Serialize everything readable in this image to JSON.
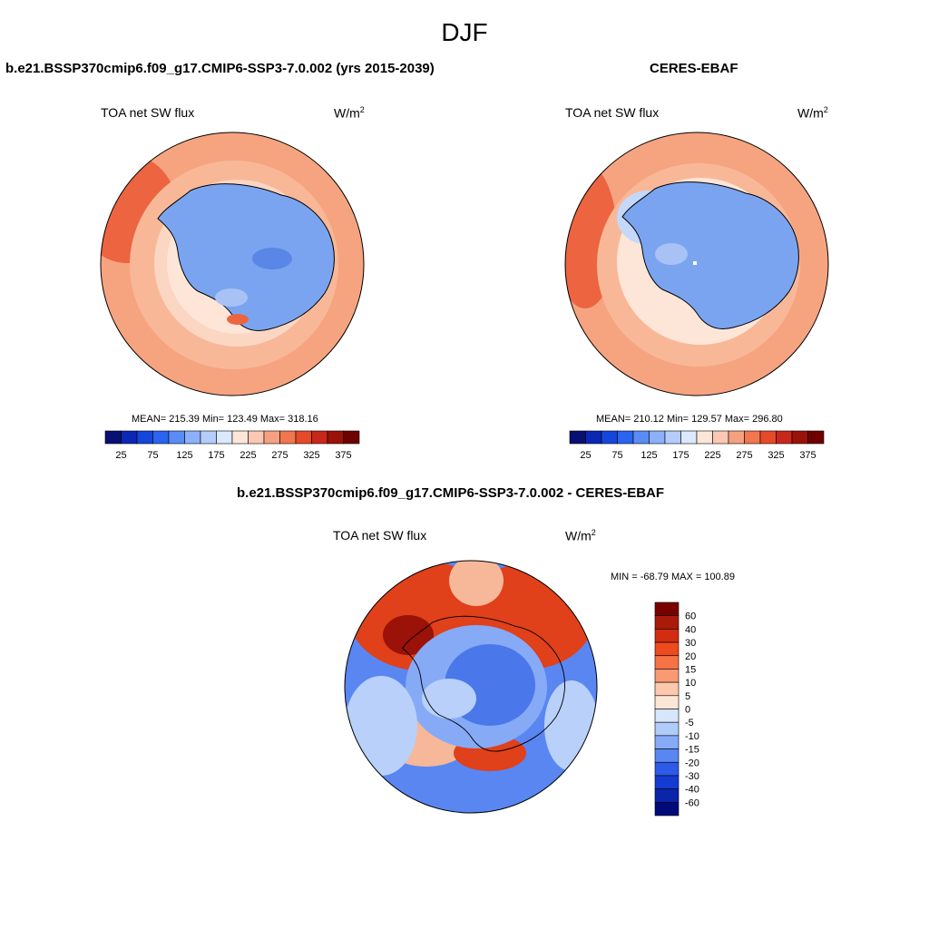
{
  "figure": {
    "title": "DJF",
    "panels": [
      {
        "id": "model",
        "title": "b.e21.BSSP370cmip6.f09_g17.CMIP6-SSP3-7.0.002 (yrs 2015-2039)",
        "variable": "TOA net SW flux",
        "units": "W/m",
        "units_sup": "2",
        "stats": "MEAN= 215.39  Min= 123.49  Max= 318.16"
      },
      {
        "id": "obs",
        "title": "CERES-EBAF",
        "variable": "TOA net SW flux",
        "units": "W/m",
        "units_sup": "2",
        "stats": "MEAN= 210.12  Min= 129.57  Max= 296.80"
      },
      {
        "id": "diff",
        "title": "b.e21.BSSP370cmip6.f09_g17.CMIP6-SSP3-7.0.002 - CERES-EBAF",
        "variable": "TOA net SW flux",
        "units": "W/m",
        "units_sup": "2",
        "stats": "MIN = -68.79 MAX = 100.89"
      }
    ]
  },
  "colorbar_fields": {
    "colors": [
      "#0a0f73",
      "#0a28b4",
      "#1446dc",
      "#2a64f0",
      "#5a8cf5",
      "#8cb0fa",
      "#b4cdfa",
      "#dce8fb",
      "#fde6d7",
      "#fbc8b4",
      "#f5a080",
      "#f27650",
      "#e64a28",
      "#c8281a",
      "#9b1208",
      "#6e0000"
    ],
    "tick_labels": [
      "25",
      "75",
      "125",
      "175",
      "225",
      "275",
      "325",
      "375"
    ]
  },
  "colorbar_diff": {
    "colors": [
      "#7a0000",
      "#aa1a08",
      "#d22d10",
      "#ee4a1e",
      "#f57345",
      "#f99a72",
      "#fcc8ae",
      "#fde6d6",
      "#d6e6fb",
      "#b0ccf9",
      "#86aaf6",
      "#5a86f2",
      "#2e5aea",
      "#143cd2",
      "#0a24aa",
      "#000a78"
    ],
    "tick_labels": [
      "60",
      "40",
      "30",
      "20",
      "15",
      "10",
      "5",
      "0",
      "-5",
      "-10",
      "-15",
      "-20",
      "-30",
      "-40",
      "-60"
    ]
  },
  "map_colors": {
    "ice": "#6a98ee",
    "ice_light": "#a8c2f6",
    "ocean_high": "#f6a480",
    "ocean_mid": "#f8b898",
    "ocean_pale": "#fde0d0",
    "ocean_dark": "#ec6440",
    "diff_red": "#e0401a",
    "diff_darkred": "#9b1208",
    "diff_blue": "#4a78ea",
    "diff_lightblue": "#b8d0fa",
    "diff_pink": "#f6b898"
  }
}
